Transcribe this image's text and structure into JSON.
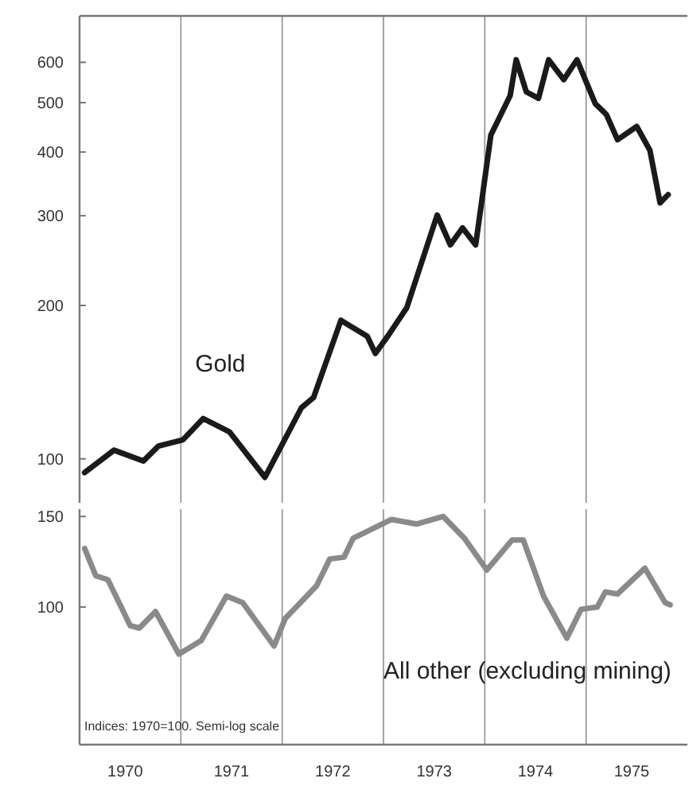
{
  "chart_data": [
    {
      "type": "line",
      "log": "y",
      "xlim": [
        1970,
        1976
      ],
      "ylim": [
        82,
        740
      ],
      "yticks": [
        100,
        200,
        300,
        400,
        500,
        600
      ],
      "tick_labels": "y",
      "marker": "none",
      "line_style": "solid",
      "ref_lines": [
        {
          "axis": "x",
          "value": 1971
        },
        {
          "axis": "x",
          "value": 1972
        },
        {
          "axis": "x",
          "value": 1973
        },
        {
          "axis": "x",
          "value": 1974
        },
        {
          "axis": "x",
          "value": 1975
        }
      ],
      "series": [
        {
          "name": "Gold",
          "color": "#1a1a1a",
          "x": [
            1970.05,
            1970.34,
            1970.63,
            1970.78,
            1971.02,
            1971.22,
            1971.48,
            1971.83,
            1972.19,
            1972.31,
            1972.58,
            1972.84,
            1972.92,
            1973.05,
            1973.23,
            1973.53,
            1973.66,
            1973.78,
            1973.91,
            1974.06,
            1974.25,
            1974.31,
            1974.41,
            1974.53,
            1974.63,
            1974.78,
            1974.91,
            1975.09,
            1975.2,
            1975.31,
            1975.5,
            1975.63,
            1975.73,
            1975.81
          ],
          "values": [
            94,
            104,
            99,
            106,
            109,
            120,
            113,
            92,
            126,
            132,
            187,
            174,
            161,
            175,
            198,
            301,
            263,
            284,
            263,
            432,
            516,
            607,
            525,
            510,
            607,
            555,
            607,
            498,
            474,
            423,
            449,
            403,
            318,
            330
          ]
        }
      ]
    },
    {
      "type": "line",
      "log": "y",
      "xlim": [
        1970,
        1976
      ],
      "ylim": [
        54,
        155
      ],
      "yticks": [
        100,
        150
      ],
      "xticks": [
        {
          "value": 1970.45,
          "label": "1970"
        },
        {
          "value": 1971.5,
          "label": "1971"
        },
        {
          "value": 1972.5,
          "label": "1972"
        },
        {
          "value": 1973.5,
          "label": "1973"
        },
        {
          "value": 1974.5,
          "label": "1974"
        },
        {
          "value": 1975.45,
          "label": "1975"
        }
      ],
      "marker": "none",
      "line_style": "solid",
      "ref_lines": [
        {
          "axis": "x",
          "value": 1971
        },
        {
          "axis": "x",
          "value": 1972
        },
        {
          "axis": "x",
          "value": 1973
        },
        {
          "axis": "x",
          "value": 1974
        },
        {
          "axis": "x",
          "value": 1975
        }
      ],
      "annotations": [
        "Indices: 1970=100. Semi-log scale"
      ],
      "series": [
        {
          "name": "All other (excluding mining)",
          "color": "#8a8a8a",
          "x": [
            1970.05,
            1970.16,
            1970.28,
            1970.5,
            1970.59,
            1970.75,
            1970.98,
            1971.2,
            1971.45,
            1971.61,
            1971.92,
            1972.03,
            1972.34,
            1972.47,
            1972.61,
            1972.7,
            1973.08,
            1973.33,
            1973.59,
            1973.8,
            1974.02,
            1974.27,
            1974.38,
            1974.58,
            1974.81,
            1974.95,
            1975.11,
            1975.19,
            1975.31,
            1975.58,
            1975.78,
            1975.83
          ],
          "values": [
            130,
            115,
            113,
            92,
            91,
            98,
            81,
            86,
            105,
            102,
            84,
            95,
            110,
            124,
            125,
            136,
            148,
            145,
            150,
            136,
            118,
            135,
            135,
            105,
            87,
            99,
            100,
            107,
            106,
            119,
            102,
            101
          ]
        }
      ]
    }
  ]
}
